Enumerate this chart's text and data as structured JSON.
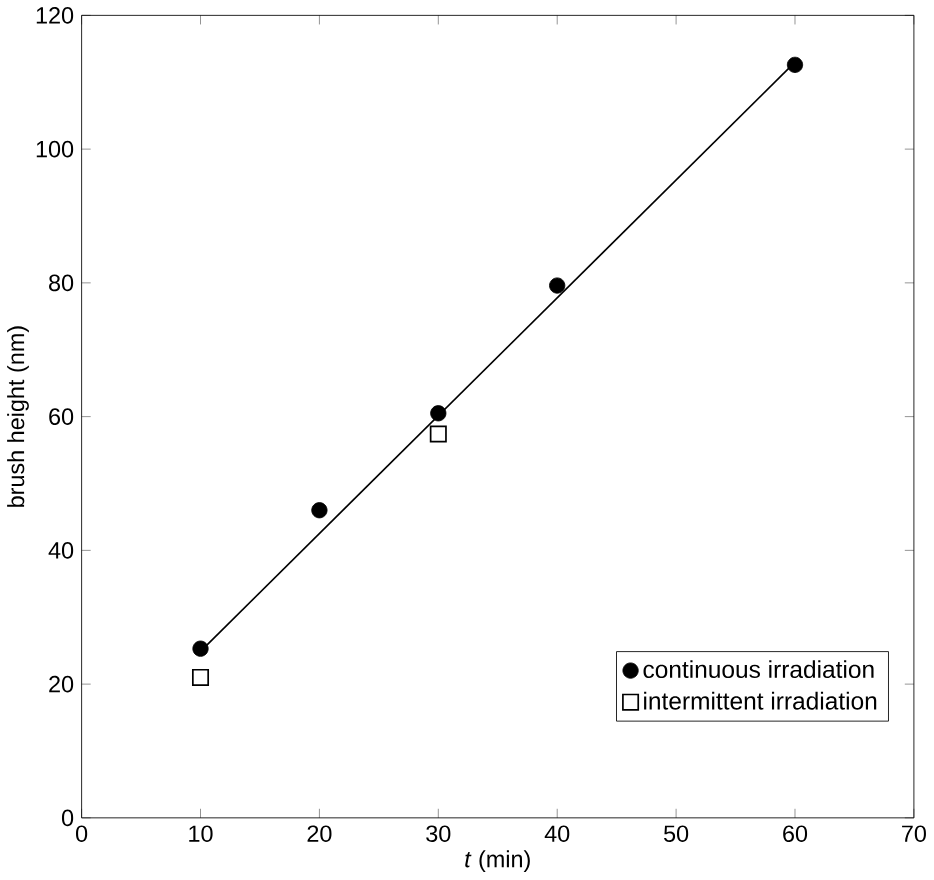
{
  "chart_data": {
    "type": "scatter",
    "xlabel": "*t* (min)",
    "ylabel": "brush height (nm)",
    "xlim": [
      0,
      70
    ],
    "ylim": [
      0,
      120
    ],
    "xticks": [
      0,
      10,
      20,
      30,
      40,
      50,
      60,
      70
    ],
    "yticks": [
      0,
      20,
      40,
      60,
      80,
      100,
      120
    ],
    "grid": false,
    "legend": "bottom right",
    "series": [
      {
        "name": "continuous irradiation",
        "marker": "circle",
        "color": "#000000",
        "x": [
          10,
          20,
          30,
          40,
          60
        ],
        "values": [
          25.3,
          46,
          60.5,
          79.6,
          112.6
        ]
      },
      {
        "name": "intermittent irradiation",
        "marker": "square",
        "color": "#000000",
        "x": [
          10,
          30
        ],
        "values": [
          21,
          57.4
        ]
      },
      {
        "type": "line",
        "marker": "none",
        "line_style": "solid",
        "color": "#000000",
        "x": [
          10,
          60
        ],
        "values": [
          24.9,
          113
        ]
      }
    ]
  }
}
